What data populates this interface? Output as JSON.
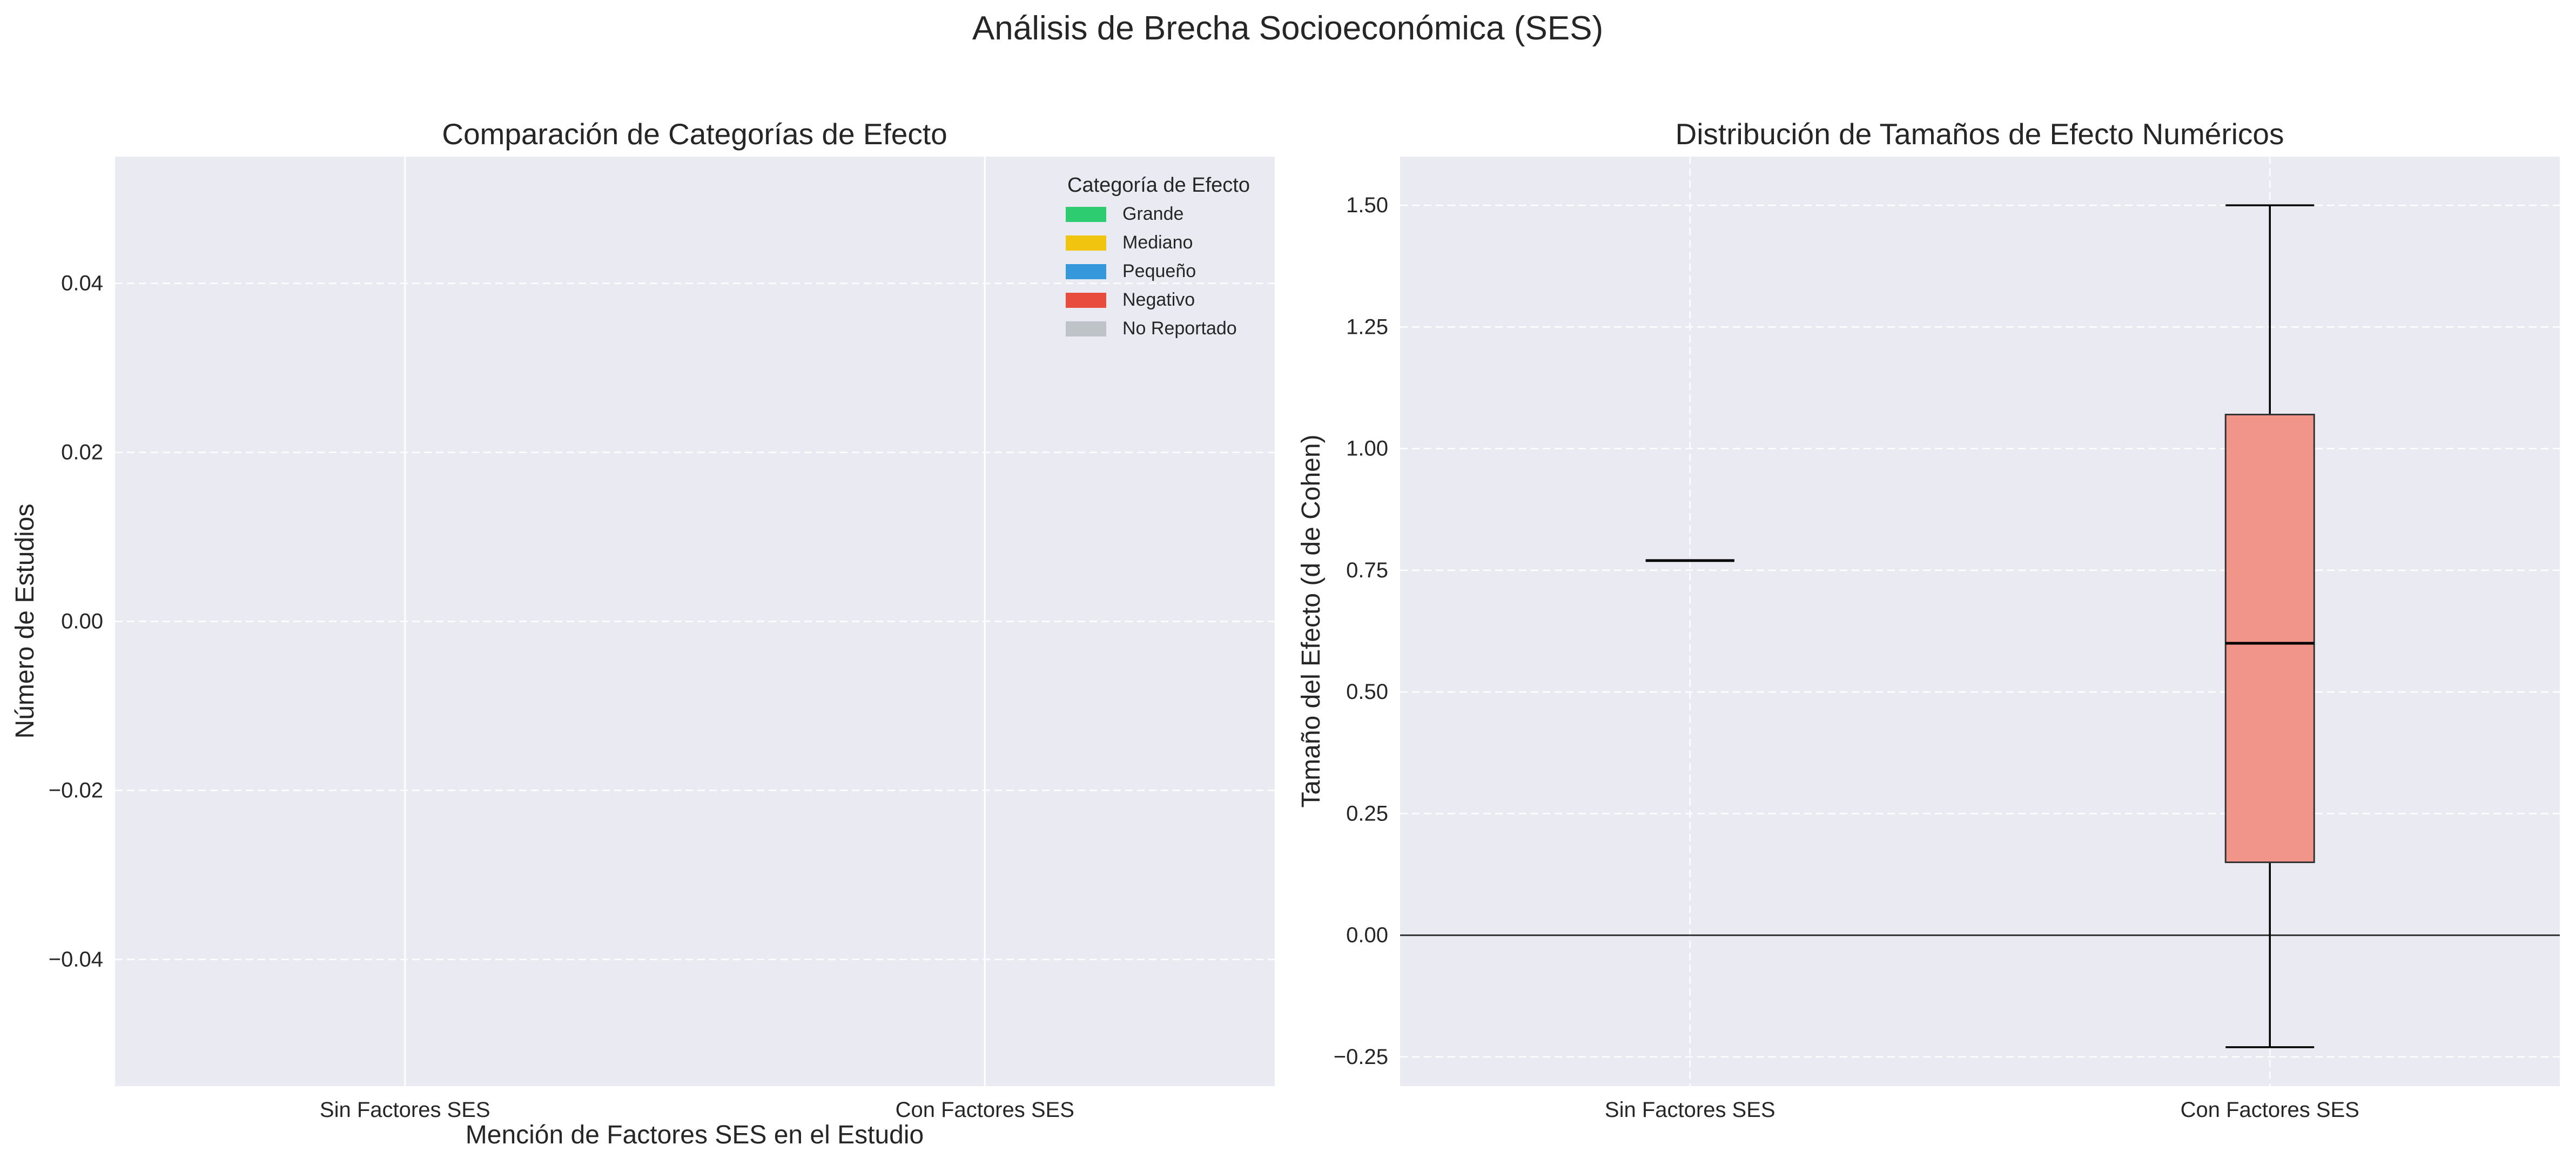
{
  "title": "Análisis de Brecha Socioeconómica (SES)",
  "chart_data": [
    {
      "type": "bar",
      "title": "Comparación de Categorías de Efecto",
      "xlabel": "Mención de Factores SES en el Estudio",
      "ylabel": "Número de Estudios",
      "categories": [
        "Sin Factores SES",
        "Con Factores SES"
      ],
      "ylim": [
        -0.055,
        0.055
      ],
      "yticks": [
        -0.04,
        -0.02,
        0.0,
        0.02,
        0.04
      ],
      "ytick_labels": [
        "−0.04",
        "−0.02",
        "0.00",
        "0.02",
        "0.04"
      ],
      "grid": true,
      "legend": {
        "title": "Categoría de Efecto",
        "placement": "top-right",
        "entries": [
          {
            "label": "Grande",
            "color": "#2ecc71"
          },
          {
            "label": "Mediano",
            "color": "#f1c40f"
          },
          {
            "label": "Pequeño",
            "color": "#3498db"
          },
          {
            "label": "Negativo",
            "color": "#e74c3c"
          },
          {
            "label": "No Reportado",
            "color": "#bdc3c7"
          }
        ]
      },
      "series": [
        {
          "name": "Grande",
          "values": [
            0,
            0
          ]
        },
        {
          "name": "Mediano",
          "values": [
            0,
            0
          ]
        },
        {
          "name": "Pequeño",
          "values": [
            0,
            0
          ]
        },
        {
          "name": "Negativo",
          "values": [
            0,
            0
          ]
        },
        {
          "name": "No Reportado",
          "values": [
            0,
            0
          ]
        }
      ]
    },
    {
      "type": "box",
      "title": "Distribución de Tamaños de Efecto Numéricos",
      "xlabel": "",
      "ylabel": "Tamaño del Efecto (d de Cohen)",
      "categories": [
        "Sin Factores SES",
        "Con Factores SES"
      ],
      "ylim": [
        -0.31,
        1.6
      ],
      "yticks": [
        -0.25,
        0.0,
        0.25,
        0.5,
        0.75,
        1.0,
        1.25,
        1.5
      ],
      "ytick_labels": [
        "−0.25",
        "0.00",
        "0.25",
        "0.50",
        "0.75",
        "1.00",
        "1.25",
        "1.50"
      ],
      "reference_line": 0,
      "box_color": "#f1948a",
      "grid": true,
      "boxes": [
        {
          "category": "Sin Factores SES",
          "min": 0.77,
          "q1": 0.77,
          "median": 0.77,
          "q3": 0.77,
          "max": 0.77
        },
        {
          "category": "Con Factores SES",
          "min": -0.23,
          "q1": 0.15,
          "median": 0.6,
          "q3": 1.07,
          "max": 1.5
        }
      ]
    }
  ]
}
